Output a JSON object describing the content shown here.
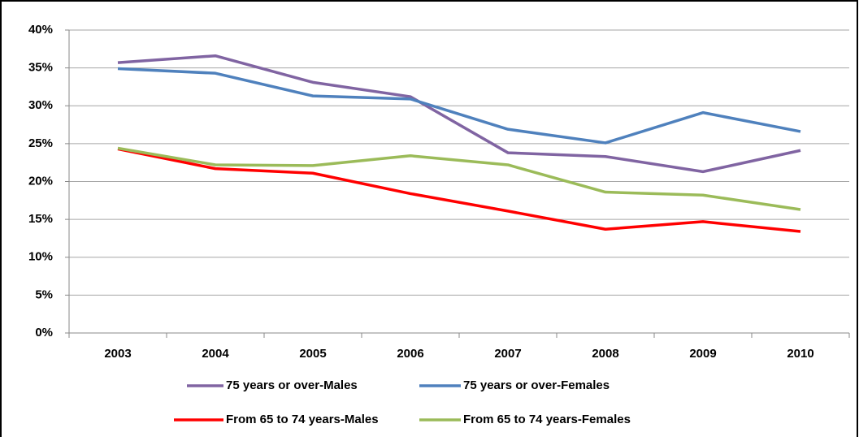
{
  "chart_data": {
    "type": "line",
    "categories": [
      "2003",
      "2004",
      "2005",
      "2006",
      "2007",
      "2008",
      "2009",
      "2010"
    ],
    "series": [
      {
        "name": "75 years or over-Males",
        "color": "#8064a2",
        "values": [
          35.7,
          36.6,
          33.1,
          31.2,
          23.8,
          23.3,
          21.3,
          24.1
        ]
      },
      {
        "name": "75 years or over-Females",
        "color": "#4f81bd",
        "values": [
          34.9,
          34.3,
          31.3,
          30.9,
          26.9,
          25.1,
          29.1,
          26.6
        ]
      },
      {
        "name": "From 65 to 74 years-Males",
        "color": "#ff0000",
        "values": [
          24.3,
          21.7,
          21.1,
          18.4,
          16.1,
          13.7,
          14.7,
          13.4
        ]
      },
      {
        "name": "From 65 to 74 years-Females",
        "color": "#9bbb59",
        "values": [
          24.4,
          22.2,
          22.1,
          23.4,
          22.2,
          18.6,
          18.2,
          16.3
        ]
      }
    ],
    "ylim": [
      0,
      40
    ],
    "yticks": [
      {
        "value": 0,
        "label": "0%"
      },
      {
        "value": 5,
        "label": "5%"
      },
      {
        "value": 10,
        "label": "10%"
      },
      {
        "value": 15,
        "label": "15%"
      },
      {
        "value": 20,
        "label": "20%"
      },
      {
        "value": 25,
        "label": "25%"
      },
      {
        "value": 30,
        "label": "30%"
      },
      {
        "value": 35,
        "label": "35%"
      },
      {
        "value": 40,
        "label": "40%"
      }
    ],
    "grid": true,
    "legend": "bottom"
  }
}
